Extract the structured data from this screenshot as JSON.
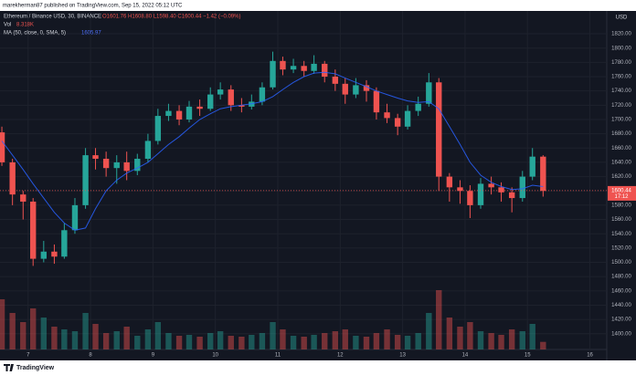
{
  "chart_data": {
    "type": "candlestick",
    "publish_note": "marekherman87 published on TradingView.com, Sep 15, 2022 05:12 UTC",
    "symbol": "Ethereum / Binance USD, 30, BINANCE",
    "ohlc_text": "O1601.76 H1608.80 L1598.40 C1600.44 −1.42 (−0.09%)",
    "volume_label": "Vol",
    "volume_value": "8.318K",
    "currency": "USD",
    "brand": "TradingView",
    "up_color": "#26a69a",
    "down_color": "#ef5350",
    "x": [
      6.58,
      6.75,
      6.92,
      7.08,
      7.25,
      7.42,
      7.58,
      7.75,
      7.92,
      8.08,
      8.25,
      8.42,
      8.58,
      8.75,
      8.92,
      9.08,
      9.25,
      9.42,
      9.58,
      9.75,
      9.92,
      10.08,
      10.25,
      10.42,
      10.58,
      10.75,
      10.92,
      11.08,
      11.25,
      11.42,
      11.58,
      11.75,
      11.92,
      12.08,
      12.25,
      12.42,
      12.58,
      12.75,
      12.92,
      13.08,
      13.25,
      13.42,
      13.58,
      13.75,
      13.92,
      14.08,
      14.25,
      14.42,
      14.58,
      14.75,
      14.92,
      15.08,
      15.25
    ],
    "open": [
      1682,
      1640,
      1595,
      1585,
      1505,
      1515,
      1508,
      1545,
      1580,
      1650,
      1645,
      1632,
      1640,
      1628,
      1645,
      1670,
      1705,
      1712,
      1700,
      1718,
      1715,
      1735,
      1742,
      1720,
      1718,
      1725,
      1745,
      1782,
      1770,
      1775,
      1768,
      1778,
      1760,
      1750,
      1735,
      1748,
      1740,
      1710,
      1702,
      1690,
      1712,
      1722,
      1752,
      1620,
      1605,
      1600,
      1580,
      1610,
      1605,
      1598,
      1590,
      1620,
      1648
    ],
    "high": [
      1690,
      1645,
      1600,
      1590,
      1530,
      1525,
      1555,
      1590,
      1660,
      1660,
      1655,
      1650,
      1655,
      1652,
      1680,
      1715,
      1722,
      1720,
      1726,
      1728,
      1745,
      1752,
      1748,
      1730,
      1735,
      1752,
      1795,
      1788,
      1785,
      1782,
      1790,
      1782,
      1770,
      1758,
      1758,
      1755,
      1745,
      1722,
      1708,
      1720,
      1732,
      1765,
      1758,
      1625,
      1615,
      1608,
      1618,
      1620,
      1612,
      1605,
      1628,
      1660,
      1650
    ],
    "low": [
      1635,
      1580,
      1560,
      1495,
      1500,
      1498,
      1505,
      1540,
      1575,
      1630,
      1620,
      1610,
      1615,
      1622,
      1640,
      1665,
      1698,
      1692,
      1696,
      1705,
      1712,
      1728,
      1712,
      1710,
      1714,
      1720,
      1742,
      1762,
      1765,
      1760,
      1764,
      1752,
      1740,
      1722,
      1730,
      1725,
      1700,
      1695,
      1678,
      1686,
      1705,
      1718,
      1600,
      1585,
      1582,
      1562,
      1575,
      1595,
      1585,
      1570,
      1585,
      1615,
      1592
    ],
    "close": [
      1640,
      1595,
      1585,
      1505,
      1515,
      1508,
      1545,
      1580,
      1650,
      1645,
      1632,
      1640,
      1628,
      1645,
      1670,
      1705,
      1712,
      1700,
      1718,
      1715,
      1735,
      1742,
      1720,
      1718,
      1725,
      1745,
      1782,
      1770,
      1775,
      1768,
      1778,
      1760,
      1750,
      1735,
      1748,
      1740,
      1710,
      1702,
      1690,
      1712,
      1722,
      1752,
      1620,
      1605,
      1600,
      1580,
      1610,
      1605,
      1598,
      1590,
      1620,
      1648,
      1600
    ],
    "volume": [
      55,
      40,
      30,
      45,
      35,
      25,
      22,
      20,
      40,
      28,
      18,
      20,
      25,
      15,
      22,
      30,
      18,
      15,
      16,
      14,
      18,
      20,
      15,
      14,
      16,
      18,
      30,
      22,
      15,
      14,
      16,
      18,
      20,
      22,
      15,
      14,
      18,
      22,
      16,
      15,
      18,
      40,
      65,
      35,
      25,
      30,
      20,
      18,
      16,
      22,
      20,
      28,
      8.318
    ],
    "ma": {
      "name": "MA (50, close, 0, SMA, 5)",
      "value_text": "1605.97",
      "color": "#2962ff",
      "values": [
        1670,
        1650,
        1630,
        1610,
        1590,
        1570,
        1555,
        1545,
        1548,
        1575,
        1600,
        1615,
        1625,
        1632,
        1640,
        1652,
        1665,
        1676,
        1688,
        1700,
        1708,
        1715,
        1718,
        1720,
        1722,
        1725,
        1732,
        1742,
        1752,
        1760,
        1765,
        1766,
        1764,
        1758,
        1752,
        1746,
        1740,
        1735,
        1730,
        1726,
        1724,
        1725,
        1715,
        1690,
        1665,
        1640,
        1622,
        1612,
        1606,
        1602,
        1603,
        1608,
        1606
      ]
    },
    "last_price": 1600.44,
    "countdown": "17:12",
    "xlim": [
      6.55,
      16.27
    ],
    "xticks": [
      7,
      8,
      9,
      10,
      11,
      12,
      13,
      14,
      15,
      16
    ],
    "ylim": [
      1378,
      1852
    ],
    "yticks": [
      {
        "value": 1400,
        "label": "1400.00"
      },
      {
        "value": 1420,
        "label": "1420.00"
      },
      {
        "value": 1440,
        "label": "1440.00"
      },
      {
        "value": 1460,
        "label": "1460.00"
      },
      {
        "value": 1480,
        "label": "1480.00"
      },
      {
        "value": 1500,
        "label": "1500.00"
      },
      {
        "value": 1520,
        "label": "1520.00"
      },
      {
        "value": 1540,
        "label": "1540.00"
      },
      {
        "value": 1560,
        "label": "1560.00"
      },
      {
        "value": 1580,
        "label": "1580.00"
      },
      {
        "value": 1600,
        "label": "1600.00"
      },
      {
        "value": 1620,
        "label": "1620.00"
      },
      {
        "value": 1640,
        "label": "1640.00"
      },
      {
        "value": 1660,
        "label": "1660.00"
      },
      {
        "value": 1680,
        "label": "1680.00"
      },
      {
        "value": 1700,
        "label": "1700.00"
      },
      {
        "value": 1720,
        "label": "1720.00"
      },
      {
        "value": 1740,
        "label": "1740.00"
      },
      {
        "value": 1760,
        "label": "1760.00"
      },
      {
        "value": 1780,
        "label": "1780.00"
      },
      {
        "value": 1800,
        "label": "1800.00"
      },
      {
        "value": 1820,
        "label": "1820.00"
      }
    ],
    "grid": true
  }
}
